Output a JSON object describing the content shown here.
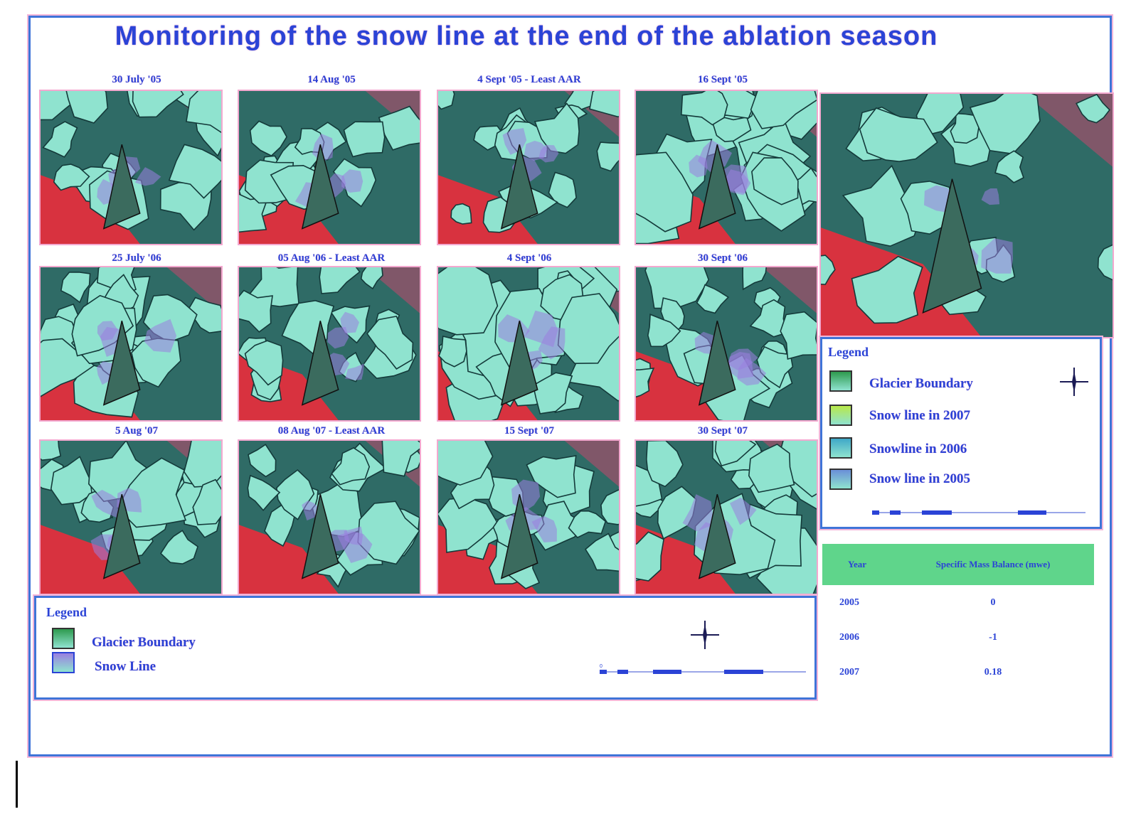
{
  "title": "Monitoring of the snow line at the end of the ablation season",
  "panels": [
    {
      "label": "30 July '05"
    },
    {
      "label": "14 Aug '05"
    },
    {
      "label": "4 Sept '05 - Least AAR"
    },
    {
      "label": "16 Sept '05"
    },
    {
      "label": "25 July '06"
    },
    {
      "label": "05 Aug '06 - Least AAR"
    },
    {
      "label": "4 Sept '06"
    },
    {
      "label": "30 Sept '06"
    },
    {
      "label": "5 Aug '07"
    },
    {
      "label": "08 Aug '07 - Least AAR"
    },
    {
      "label": "15 Sept '07"
    },
    {
      "label": "30 Sept '07"
    }
  ],
  "legend_main": {
    "title": "Legend",
    "items": [
      {
        "label": "Glacier Boundary",
        "color": "#2e9a4e"
      },
      {
        "label": "Snow Line",
        "color": "#9a7fe0"
      }
    ]
  },
  "legend_right": {
    "title": "Legend",
    "items": [
      {
        "label": "Glacier Boundary",
        "color": "#2e9a4e"
      },
      {
        "label": "Snow line in 2007",
        "color": "#b8e84a"
      },
      {
        "label": "Snowline in 2006",
        "color": "#3fa8c8"
      },
      {
        "label": "Snow line in 2005",
        "color": "#6a8fd8"
      }
    ]
  },
  "mass_balance_table": {
    "headers": [
      "Year",
      "Specific Mass Balance (mwe)"
    ],
    "rows": [
      {
        "year": "2005",
        "value": "0"
      },
      {
        "year": "2006",
        "value": "-1"
      },
      {
        "year": "2007",
        "value": "0.18"
      }
    ]
  },
  "icons": {
    "compass": "north-arrow-icon",
    "scale": "scale-bar-icon"
  },
  "colors": {
    "frame": "#3f74d8",
    "title": "#2b43d6",
    "snow": "#8fe3cf",
    "vegetation": "#d8323f",
    "rock": "#2f6b66",
    "table_header": "#5fd58b"
  }
}
